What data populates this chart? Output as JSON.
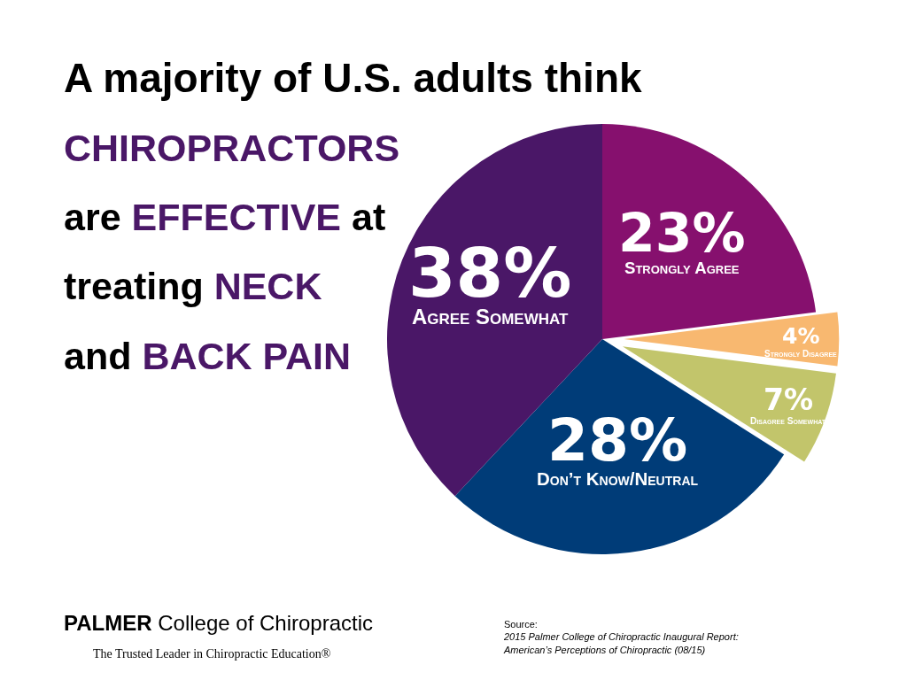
{
  "chart_data": {
    "type": "pie",
    "title": "A majority of U.S. adults think",
    "subtitle": "CHIROPRACTORS\nare EFFECTIVE at\ntreating NECK\nand BACK PAIN",
    "categories": [
      "Strongly Agree",
      "Strongly Disagree",
      "Disagree Somewhat",
      "Don’t Know/Neutral",
      "Agree Somewhat"
    ],
    "values": [
      23,
      4,
      7,
      28,
      38
    ],
    "value_labels": [
      "23%",
      "4%",
      "7%",
      "28%",
      "38%"
    ],
    "colors": [
      "#86106e",
      "#f8b870",
      "#c2c56b",
      "#003c78",
      "#4a1767"
    ],
    "annotations": [
      "Source:\n2015 Palmer College of Chiropractic Inaugural Report:\nAmerican’s Perceptions of Chiropractic (08/15)",
      "PALMER College of Chiropractic",
      "The Trusted Leader in Chiropractic Education®"
    ]
  }
}
